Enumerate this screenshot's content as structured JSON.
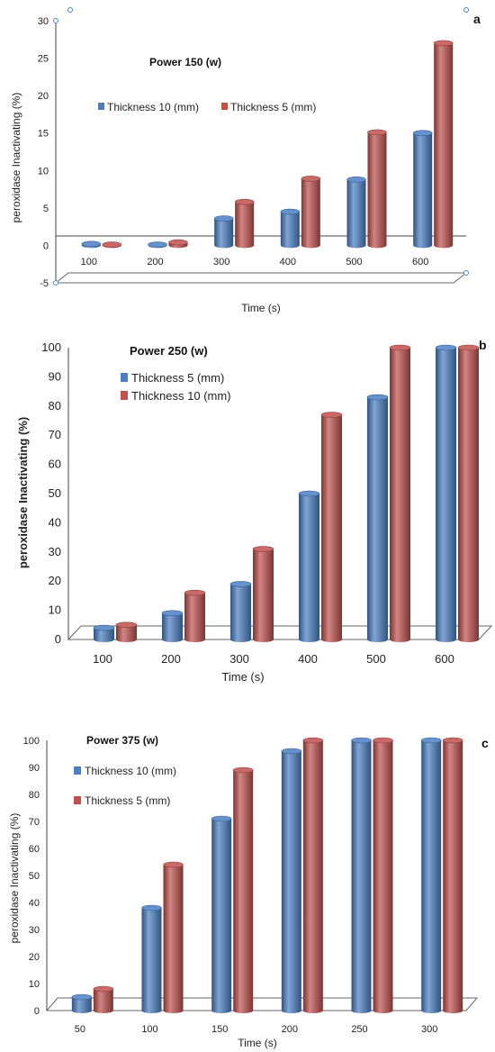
{
  "colors": {
    "blue": "#4a7fc4",
    "blue_dark": "#2c5a94",
    "blue_light": "#7aa6dc",
    "red": "#c0504d",
    "red_dark": "#8e2f2d",
    "red_light": "#dd7f7c"
  },
  "chart_data": [
    {
      "panel_label": "a",
      "type": "bar",
      "style": "3d-cylinder",
      "title": "Power 150 (w)",
      "xlabel": "Time (s)",
      "ylabel": "peroxidase Inactivating  (%)",
      "categories": [
        "100",
        "200",
        "300",
        "400",
        "500",
        "600"
      ],
      "ylim": [
        -5,
        30
      ],
      "yticks": [
        -5,
        0,
        5,
        10,
        15,
        20,
        25,
        30
      ],
      "legend_position": "top-left",
      "series": [
        {
          "name": "Thickness 10 (mm)",
          "color": "#4a7fc4",
          "values": [
            0.2,
            0.1,
            3.6,
            4.5,
            8.8,
            15
          ]
        },
        {
          "name": "Thickness 5 (mm)",
          "color": "#c0504d",
          "values": [
            0.1,
            0.4,
            5.8,
            8.9,
            15.1,
            27
          ]
        }
      ]
    },
    {
      "panel_label": "b",
      "type": "bar",
      "style": "3d-cylinder",
      "title": "Power 250 (w)",
      "xlabel": "Time (s)",
      "ylabel": "peroxidase Inactivating  (%)",
      "categories": [
        "100",
        "200",
        "300",
        "400",
        "500",
        "600"
      ],
      "ylim": [
        0,
        100
      ],
      "yticks": [
        0,
        10,
        20,
        30,
        40,
        50,
        60,
        70,
        80,
        90,
        100
      ],
      "legend_position": "top-left",
      "series": [
        {
          "name": "Thickness 5 (mm)",
          "color": "#4a7fc4",
          "values": [
            4,
            9,
            19,
            50,
            83,
            100
          ]
        },
        {
          "name": "Thickness 10 (mm)",
          "color": "#c0504d",
          "values": [
            5,
            16,
            31,
            77,
            100,
            100
          ]
        }
      ]
    },
    {
      "panel_label": "c",
      "type": "bar",
      "style": "3d-cylinder",
      "title": "Power 375 (w)",
      "xlabel": "Time (s)",
      "ylabel": "peroxidase Inactivating  (%)",
      "categories": [
        "50",
        "100",
        "150",
        "200",
        "250",
        "300"
      ],
      "ylim": [
        0,
        100
      ],
      "yticks": [
        0,
        10,
        20,
        30,
        40,
        50,
        60,
        70,
        80,
        90,
        100
      ],
      "legend_position": "top-left",
      "series": [
        {
          "name": "Thickness 10 (mm)",
          "color": "#4a7fc4",
          "values": [
            5,
            38,
            71,
            96,
            100,
            100
          ]
        },
        {
          "name": "Thickness 5 (mm)",
          "color": "#c0504d",
          "values": [
            8,
            54,
            89,
            100,
            100,
            100
          ]
        }
      ]
    }
  ]
}
